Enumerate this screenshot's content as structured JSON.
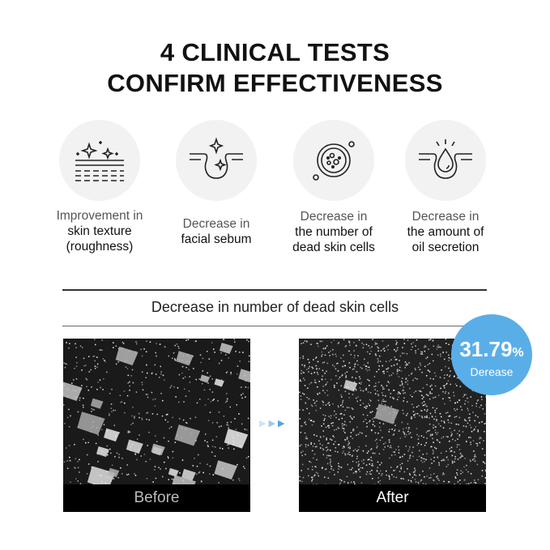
{
  "title": {
    "line1": "4 CLINICAL TESTS",
    "line2": "CONFIRM EFFECTIVENESS"
  },
  "tests": [
    {
      "icon": "skin-texture-icon",
      "line1": "Improvement in",
      "line2": "skin texture",
      "line3": "(roughness)"
    },
    {
      "icon": "sebum-pore-icon",
      "line1": "Decrease in",
      "line2": "facial sebum",
      "line3": ""
    },
    {
      "icon": "dead-skin-cells-icon",
      "line1": "Decrease in",
      "line2": "the number of",
      "line3": "dead skin cells"
    },
    {
      "icon": "oil-drop-icon",
      "line1": "Decrease in",
      "line2": "the amount of",
      "line3": "oil secretion"
    }
  ],
  "comparison": {
    "heading": "Decrease in number of dead skin cells",
    "before_label": "Before",
    "after_label": "After",
    "badge_value": "31.79",
    "badge_unit": "%",
    "badge_text": "Derease",
    "badge_color": "#5aaee8"
  }
}
